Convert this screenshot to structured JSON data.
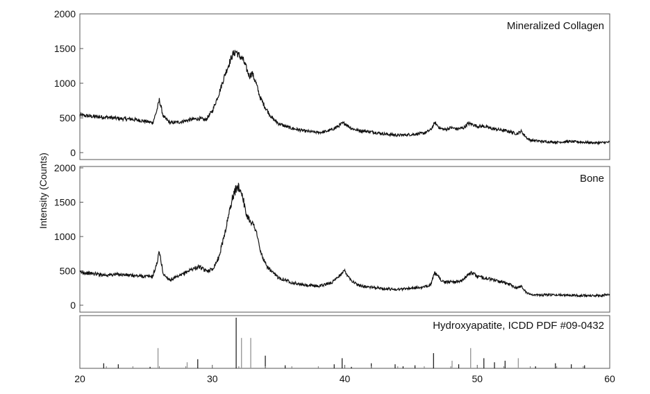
{
  "chart_data": [
    {
      "type": "line",
      "title": "Mineralized Collagen",
      "x_range": [
        20,
        60
      ],
      "ylim": [
        0,
        2000
      ],
      "y_ticks": [
        0,
        500,
        1000,
        1500,
        2000
      ],
      "series": [
        {
          "x": [
            20,
            21,
            22,
            23,
            24,
            25,
            25.5,
            25.8,
            26,
            26.3,
            26.8,
            27.5,
            28,
            28.5,
            29,
            29.5,
            30,
            30.5,
            31,
            31.5,
            31.8,
            32,
            32.3,
            32.5,
            32.8,
            33,
            33.3,
            33.6,
            34,
            34.5,
            35,
            35.5,
            36,
            37,
            38,
            38.5,
            39,
            39.5,
            39.8,
            40,
            40.5,
            41,
            42,
            43,
            44,
            45,
            46,
            46.5,
            46.8,
            47.2,
            47.6,
            48,
            48.5,
            49,
            49.3,
            49.6,
            50,
            50.5,
            51,
            52,
            52.5,
            53,
            53.3,
            53.8,
            54,
            54.5,
            55,
            56,
            57,
            58,
            59,
            60
          ],
          "y": [
            540,
            520,
            510,
            490,
            480,
            450,
            430,
            600,
            760,
            520,
            430,
            440,
            460,
            480,
            490,
            470,
            600,
            850,
            1150,
            1400,
            1460,
            1400,
            1350,
            1250,
            1100,
            1150,
            1000,
            800,
            650,
            500,
            420,
            380,
            350,
            310,
            290,
            300,
            330,
            380,
            420,
            420,
            350,
            320,
            300,
            270,
            250,
            260,
            280,
            330,
            430,
            350,
            330,
            360,
            340,
            360,
            420,
            410,
            380,
            380,
            350,
            320,
            300,
            270,
            310,
            200,
            180,
            170,
            160,
            150,
            160,
            150,
            140,
            150
          ]
        }
      ]
    },
    {
      "type": "line",
      "title": "Bone",
      "x_range": [
        20,
        60
      ],
      "ylim": [
        0,
        2000
      ],
      "y_ticks": [
        0,
        500,
        1000,
        1500,
        2000
      ],
      "series": [
        {
          "x": [
            20,
            21,
            22,
            23,
            24,
            25,
            25.5,
            25.8,
            26,
            26.3,
            26.8,
            27.5,
            28,
            28.5,
            29,
            29.5,
            30,
            30.5,
            31,
            31.5,
            31.8,
            32,
            32.3,
            32.5,
            32.8,
            33,
            33.3,
            33.6,
            34,
            34.5,
            35,
            35.5,
            36,
            37,
            38,
            38.5,
            39,
            39.5,
            39.8,
            40,
            40.5,
            41,
            42,
            43,
            44,
            45,
            46,
            46.5,
            46.8,
            47.2,
            47.6,
            48,
            48.5,
            49,
            49.3,
            49.6,
            50,
            50.5,
            51,
            52,
            52.5,
            53,
            53.3,
            53.8,
            54,
            54.5,
            55,
            56,
            57,
            58,
            59,
            60
          ],
          "y": [
            480,
            460,
            440,
            450,
            430,
            420,
            420,
            600,
            780,
            450,
            370,
            420,
            480,
            530,
            560,
            500,
            520,
            700,
            1100,
            1550,
            1700,
            1720,
            1600,
            1350,
            1250,
            1200,
            1100,
            800,
            600,
            480,
            400,
            370,
            330,
            290,
            280,
            300,
            330,
            400,
            480,
            500,
            360,
            290,
            260,
            240,
            230,
            250,
            260,
            310,
            470,
            380,
            330,
            350,
            340,
            370,
            460,
            470,
            420,
            400,
            380,
            330,
            300,
            250,
            280,
            170,
            160,
            150,
            150,
            150,
            150,
            140,
            140,
            150
          ]
        }
      ]
    },
    {
      "type": "bar",
      "title": "Hydroxyapatite, ICDD PDF #09-0432",
      "x_range": [
        20,
        60
      ],
      "x_ticks": [
        20,
        30,
        40,
        50,
        60
      ],
      "peaks": [
        {
          "x": 21.8,
          "rel": 0.1,
          "kind": "black"
        },
        {
          "x": 22.9,
          "rel": 0.08,
          "kind": "black"
        },
        {
          "x": 25.3,
          "rel": 0.03,
          "kind": "black"
        },
        {
          "x": 25.9,
          "rel": 0.4,
          "kind": "gray"
        },
        {
          "x": 28.1,
          "rel": 0.12,
          "kind": "gray"
        },
        {
          "x": 28.9,
          "rel": 0.18,
          "kind": "black"
        },
        {
          "x": 31.8,
          "rel": 1.0,
          "kind": "black"
        },
        {
          "x": 32.2,
          "rel": 0.6,
          "kind": "gray"
        },
        {
          "x": 32.9,
          "rel": 0.6,
          "kind": "gray"
        },
        {
          "x": 34.0,
          "rel": 0.25,
          "kind": "black"
        },
        {
          "x": 35.5,
          "rel": 0.06,
          "kind": "black"
        },
        {
          "x": 39.2,
          "rel": 0.08,
          "kind": "black"
        },
        {
          "x": 39.8,
          "rel": 0.2,
          "kind": "black"
        },
        {
          "x": 40.5,
          "rel": 0.03,
          "kind": "black"
        },
        {
          "x": 42.0,
          "rel": 0.1,
          "kind": "black"
        },
        {
          "x": 43.8,
          "rel": 0.08,
          "kind": "black"
        },
        {
          "x": 44.4,
          "rel": 0.04,
          "kind": "black"
        },
        {
          "x": 45.3,
          "rel": 0.06,
          "kind": "black"
        },
        {
          "x": 46.7,
          "rel": 0.3,
          "kind": "black"
        },
        {
          "x": 48.1,
          "rel": 0.15,
          "kind": "gray"
        },
        {
          "x": 48.6,
          "rel": 0.08,
          "kind": "black"
        },
        {
          "x": 49.5,
          "rel": 0.4,
          "kind": "gray"
        },
        {
          "x": 50.5,
          "rel": 0.2,
          "kind": "black"
        },
        {
          "x": 51.3,
          "rel": 0.12,
          "kind": "black"
        },
        {
          "x": 52.1,
          "rel": 0.15,
          "kind": "black"
        },
        {
          "x": 53.1,
          "rel": 0.2,
          "kind": "gray"
        },
        {
          "x": 54.4,
          "rel": 0.04,
          "kind": "black"
        },
        {
          "x": 55.9,
          "rel": 0.1,
          "kind": "black"
        },
        {
          "x": 57.1,
          "rel": 0.08,
          "kind": "black"
        },
        {
          "x": 58.1,
          "rel": 0.06,
          "kind": "black"
        }
      ]
    }
  ],
  "ylabel": "Intensity (Counts)",
  "colors": {
    "trace": "#111111",
    "ref_black": "#111111",
    "ref_gray": "#9a9a9a",
    "frame": "#555555"
  }
}
